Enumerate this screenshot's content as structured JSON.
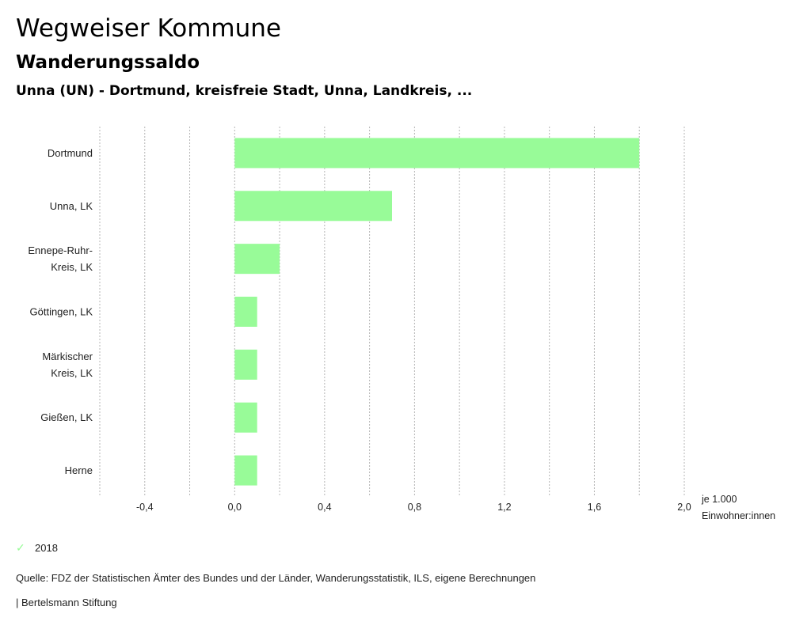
{
  "header": {
    "title": "Wegweiser Kommune",
    "subtitle": "Wanderungssaldo",
    "region": "Unna (UN) - Dortmund, kreisfreie Stadt, Unna, Landkreis, ..."
  },
  "legend": {
    "icon": "check-icon",
    "label": "2018",
    "color": "#98fb98"
  },
  "footer": {
    "source": "Quelle: FDZ der Statistischen Ämter des Bundes und der Länder, Wanderungsstatistik, ILS, eigene Berechnungen",
    "credit": "| Bertelsmann Stiftung"
  },
  "chart_data": {
    "type": "bar",
    "orientation": "horizontal",
    "title": "Wanderungssaldo",
    "categories": [
      [
        "Dortmund"
      ],
      [
        "Unna, LK"
      ],
      [
        "Ennepe-Ruhr-",
        "Kreis, LK"
      ],
      [
        "Göttingen, LK"
      ],
      [
        "Märkischer",
        "Kreis, LK"
      ],
      [
        "Gießen, LK"
      ],
      [
        "Herne"
      ]
    ],
    "series": [
      {
        "name": "2018",
        "color": "#98fb98",
        "values": [
          1.8,
          0.7,
          0.2,
          0.1,
          0.1,
          0.1,
          0.1
        ]
      }
    ],
    "xlim": [
      -0.6,
      2.0
    ],
    "xticks": [
      -0.4,
      0.0,
      0.4,
      0.8,
      1.2,
      1.6,
      2.0
    ],
    "xtick_labels": [
      "-0,4",
      "0,0",
      "0,4",
      "0,8",
      "1,2",
      "1,6",
      "2,0"
    ],
    "gridlines": [
      -0.6,
      -0.4,
      -0.2,
      0.0,
      0.2,
      0.4,
      0.6,
      0.8,
      1.0,
      1.2,
      1.4,
      1.6,
      1.8,
      2.0
    ],
    "xlabel": [
      "je 1.000",
      "Einwohner:innen"
    ],
    "ylabel": "",
    "grid": true,
    "legend_position": "bottom-left"
  }
}
